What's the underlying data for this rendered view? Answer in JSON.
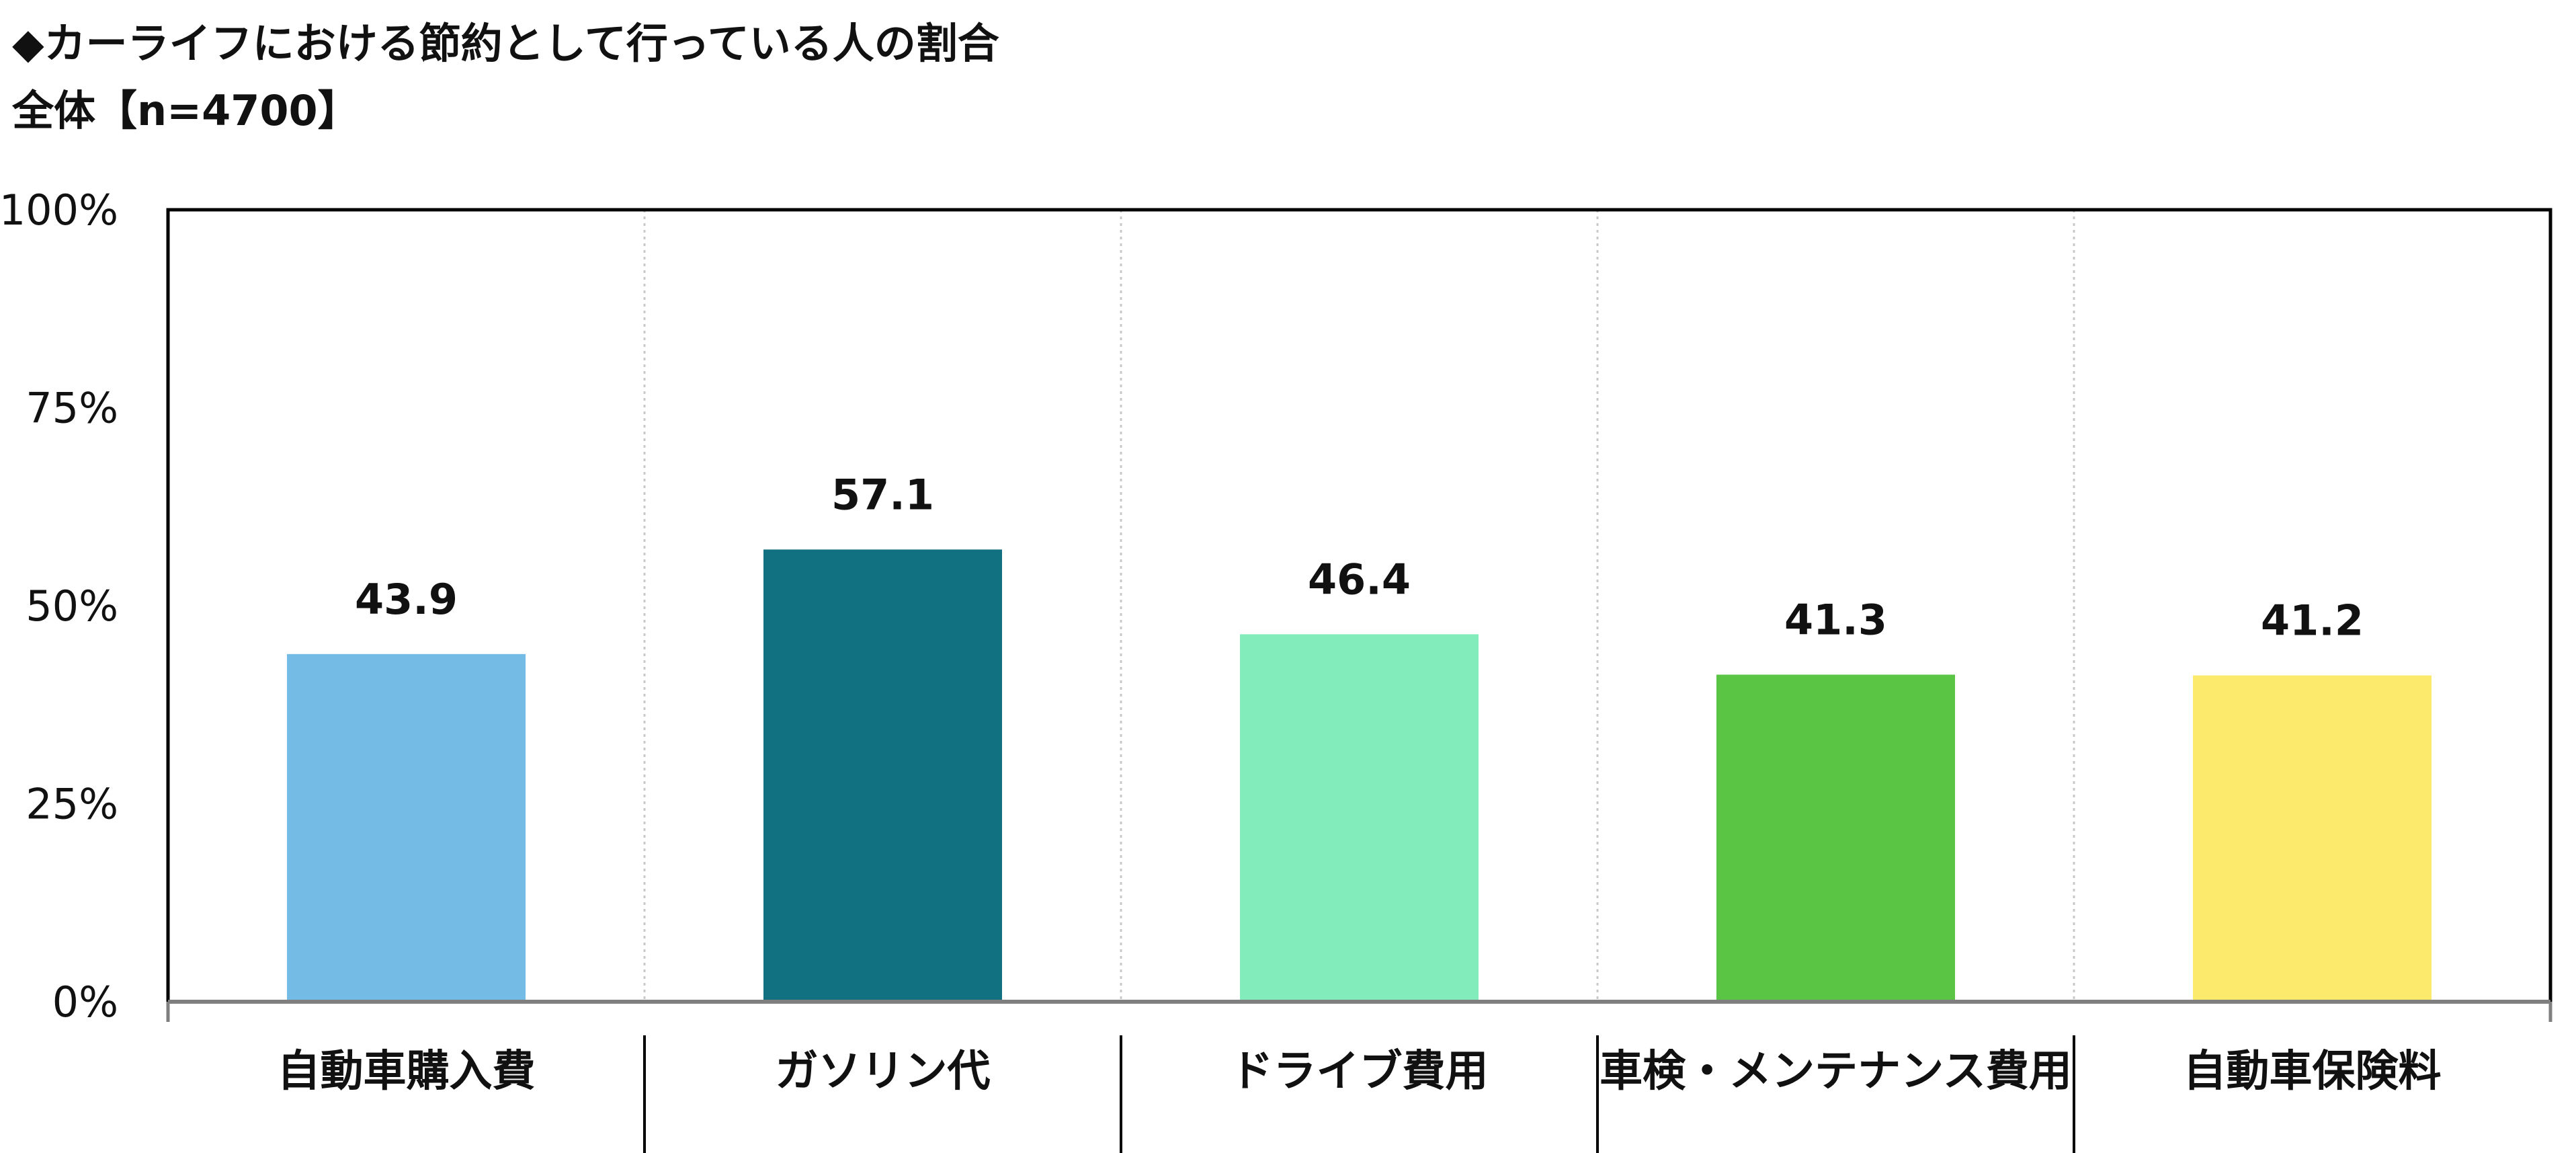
{
  "header": {
    "title": "◆カーライフにおける節約として行っている人の割合",
    "subtitle": "全体【n=4700】"
  },
  "colors": {
    "frame": "#000000",
    "baseline": "#7f7f7f",
    "gridline": "#c8c8c8",
    "bars": [
      "#74bbe6",
      "#117180",
      "#83ecbb",
      "#5ac545",
      "#fcea6c"
    ]
  },
  "chart_data": {
    "type": "bar",
    "categories": [
      "自動車購入費",
      "ガソリン代",
      "ドライブ費用",
      "車検・メンテナンス費用",
      "自動車保険料"
    ],
    "values": [
      43.9,
      57.1,
      46.4,
      41.3,
      41.2
    ],
    "data_labels": [
      "43.9",
      "57.1",
      "46.4",
      "41.3",
      "41.2"
    ],
    "y_ticks": [
      {
        "value": 0,
        "label": "0%"
      },
      {
        "value": 25,
        "label": "25%"
      },
      {
        "value": 50,
        "label": "50%"
      },
      {
        "value": 75,
        "label": "75%"
      },
      {
        "value": 100,
        "label": "100%"
      }
    ],
    "ylim": [
      0,
      100
    ],
    "title": "◆カーライフにおける節約として行っている人の割合",
    "subtitle": "全体【n=4700】",
    "xlabel": "",
    "ylabel": "",
    "grid": "vertical dotted separators",
    "legend": "none"
  }
}
